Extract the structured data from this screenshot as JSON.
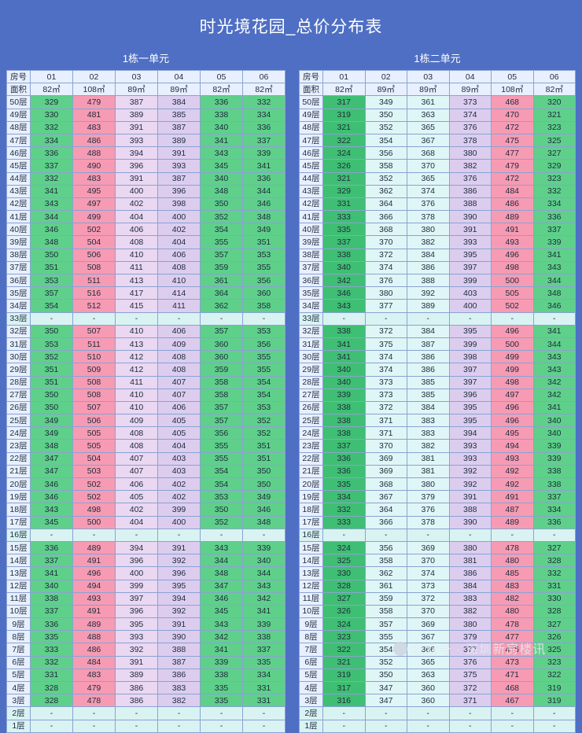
{
  "title": "时光境花园_总价分布表",
  "sections": [
    {
      "id": "left",
      "subtitle": "1栋一单元",
      "head_room": "房号",
      "head_area": "面积",
      "units": [
        "01",
        "02",
        "03",
        "04",
        "05",
        "06"
      ],
      "areas": [
        "82㎡",
        "108㎡",
        "89㎡",
        "89㎡",
        "82㎡",
        "82㎡"
      ],
      "rows": [
        {
          "floor": "50层",
          "v": [
            "329",
            "479",
            "387",
            "384",
            "336",
            "332"
          ]
        },
        {
          "floor": "49层",
          "v": [
            "330",
            "481",
            "389",
            "385",
            "338",
            "334"
          ]
        },
        {
          "floor": "48层",
          "v": [
            "332",
            "483",
            "391",
            "387",
            "340",
            "336"
          ]
        },
        {
          "floor": "47层",
          "v": [
            "334",
            "486",
            "393",
            "389",
            "341",
            "337"
          ]
        },
        {
          "floor": "46层",
          "v": [
            "336",
            "488",
            "394",
            "391",
            "343",
            "339"
          ]
        },
        {
          "floor": "45层",
          "v": [
            "337",
            "490",
            "396",
            "393",
            "345",
            "341"
          ]
        },
        {
          "floor": "44层",
          "v": [
            "332",
            "483",
            "391",
            "387",
            "340",
            "336"
          ]
        },
        {
          "floor": "43层",
          "v": [
            "341",
            "495",
            "400",
            "396",
            "348",
            "344"
          ]
        },
        {
          "floor": "42层",
          "v": [
            "343",
            "497",
            "402",
            "398",
            "350",
            "346"
          ]
        },
        {
          "floor": "41层",
          "v": [
            "344",
            "499",
            "404",
            "400",
            "352",
            "348"
          ]
        },
        {
          "floor": "40层",
          "v": [
            "346",
            "502",
            "406",
            "402",
            "354",
            "349"
          ]
        },
        {
          "floor": "39层",
          "v": [
            "348",
            "504",
            "408",
            "404",
            "355",
            "351"
          ]
        },
        {
          "floor": "38层",
          "v": [
            "350",
            "506",
            "410",
            "406",
            "357",
            "353"
          ]
        },
        {
          "floor": "37层",
          "v": [
            "351",
            "508",
            "411",
            "408",
            "359",
            "355"
          ]
        },
        {
          "floor": "36层",
          "v": [
            "353",
            "511",
            "413",
            "410",
            "361",
            "356"
          ]
        },
        {
          "floor": "35层",
          "v": [
            "357",
            "516",
            "417",
            "414",
            "364",
            "360"
          ]
        },
        {
          "floor": "34层",
          "v": [
            "354",
            "512",
            "415",
            "411",
            "362",
            "358"
          ]
        },
        {
          "floor": "33层",
          "v": [
            "-",
            "-",
            "-",
            "-",
            "-",
            "-"
          ]
        },
        {
          "floor": "32层",
          "v": [
            "350",
            "507",
            "410",
            "406",
            "357",
            "353"
          ]
        },
        {
          "floor": "31层",
          "v": [
            "353",
            "511",
            "413",
            "409",
            "360",
            "356"
          ]
        },
        {
          "floor": "30层",
          "v": [
            "352",
            "510",
            "412",
            "408",
            "360",
            "355"
          ]
        },
        {
          "floor": "29层",
          "v": [
            "351",
            "509",
            "412",
            "408",
            "359",
            "355"
          ]
        },
        {
          "floor": "28层",
          "v": [
            "351",
            "508",
            "411",
            "407",
            "358",
            "354"
          ]
        },
        {
          "floor": "27层",
          "v": [
            "350",
            "508",
            "410",
            "407",
            "358",
            "354"
          ]
        },
        {
          "floor": "26层",
          "v": [
            "350",
            "507",
            "410",
            "406",
            "357",
            "353"
          ]
        },
        {
          "floor": "25层",
          "v": [
            "349",
            "506",
            "409",
            "405",
            "357",
            "352"
          ]
        },
        {
          "floor": "24层",
          "v": [
            "349",
            "505",
            "408",
            "405",
            "356",
            "352"
          ]
        },
        {
          "floor": "23层",
          "v": [
            "348",
            "505",
            "408",
            "404",
            "355",
            "351"
          ]
        },
        {
          "floor": "22层",
          "v": [
            "347",
            "504",
            "407",
            "403",
            "355",
            "351"
          ]
        },
        {
          "floor": "21层",
          "v": [
            "347",
            "503",
            "407",
            "403",
            "354",
            "350"
          ]
        },
        {
          "floor": "20层",
          "v": [
            "346",
            "502",
            "406",
            "402",
            "354",
            "350"
          ]
        },
        {
          "floor": "19层",
          "v": [
            "346",
            "502",
            "405",
            "402",
            "353",
            "349"
          ]
        },
        {
          "floor": "18层",
          "v": [
            "343",
            "498",
            "402",
            "399",
            "350",
            "346"
          ]
        },
        {
          "floor": "17层",
          "v": [
            "345",
            "500",
            "404",
            "400",
            "352",
            "348"
          ]
        },
        {
          "floor": "16层",
          "v": [
            "-",
            "-",
            "-",
            "-",
            "-",
            "-"
          ]
        },
        {
          "floor": "15层",
          "v": [
            "336",
            "489",
            "394",
            "391",
            "343",
            "339"
          ]
        },
        {
          "floor": "14层",
          "v": [
            "337",
            "491",
            "396",
            "392",
            "344",
            "340"
          ]
        },
        {
          "floor": "13层",
          "v": [
            "341",
            "496",
            "400",
            "396",
            "348",
            "344"
          ]
        },
        {
          "floor": "12层",
          "v": [
            "340",
            "494",
            "399",
            "395",
            "347",
            "343"
          ]
        },
        {
          "floor": "11层",
          "v": [
            "338",
            "493",
            "397",
            "394",
            "346",
            "342"
          ]
        },
        {
          "floor": "10层",
          "v": [
            "337",
            "491",
            "396",
            "392",
            "345",
            "341"
          ]
        },
        {
          "floor": "9层",
          "v": [
            "336",
            "489",
            "395",
            "391",
            "343",
            "339"
          ]
        },
        {
          "floor": "8层",
          "v": [
            "335",
            "488",
            "393",
            "390",
            "342",
            "338"
          ]
        },
        {
          "floor": "7层",
          "v": [
            "333",
            "486",
            "392",
            "388",
            "341",
            "337"
          ]
        },
        {
          "floor": "6层",
          "v": [
            "332",
            "484",
            "391",
            "387",
            "339",
            "335"
          ]
        },
        {
          "floor": "5层",
          "v": [
            "331",
            "483",
            "389",
            "386",
            "338",
            "334"
          ]
        },
        {
          "floor": "4层",
          "v": [
            "328",
            "479",
            "386",
            "383",
            "335",
            "331"
          ]
        },
        {
          "floor": "3层",
          "v": [
            "328",
            "478",
            "386",
            "382",
            "335",
            "331"
          ]
        },
        {
          "floor": "2层",
          "v": [
            "-",
            "-",
            "-",
            "-",
            "-",
            "-"
          ]
        },
        {
          "floor": "1层",
          "v": [
            "-",
            "-",
            "-",
            "-",
            "-",
            "-"
          ]
        }
      ]
    },
    {
      "id": "right",
      "subtitle": "1栋二单元",
      "head_room": "房号",
      "head_area": "面积",
      "units": [
        "01",
        "02",
        "03",
        "04",
        "05",
        "06"
      ],
      "areas": [
        "82㎡",
        "89㎡",
        "89㎡",
        "89㎡",
        "108㎡",
        "82㎡"
      ],
      "rows": [
        {
          "floor": "50层",
          "v": [
            "317",
            "349",
            "361",
            "373",
            "468",
            "320"
          ]
        },
        {
          "floor": "49层",
          "v": [
            "319",
            "350",
            "363",
            "374",
            "470",
            "321"
          ]
        },
        {
          "floor": "48层",
          "v": [
            "321",
            "352",
            "365",
            "376",
            "472",
            "323"
          ]
        },
        {
          "floor": "47层",
          "v": [
            "322",
            "354",
            "367",
            "378",
            "475",
            "325"
          ]
        },
        {
          "floor": "46层",
          "v": [
            "324",
            "356",
            "368",
            "380",
            "477",
            "327"
          ]
        },
        {
          "floor": "45层",
          "v": [
            "326",
            "358",
            "370",
            "382",
            "479",
            "329"
          ]
        },
        {
          "floor": "44层",
          "v": [
            "321",
            "352",
            "365",
            "376",
            "472",
            "323"
          ]
        },
        {
          "floor": "43层",
          "v": [
            "329",
            "362",
            "374",
            "386",
            "484",
            "332"
          ]
        },
        {
          "floor": "42层",
          "v": [
            "331",
            "364",
            "376",
            "388",
            "486",
            "334"
          ]
        },
        {
          "floor": "41层",
          "v": [
            "333",
            "366",
            "378",
            "390",
            "489",
            "336"
          ]
        },
        {
          "floor": "40层",
          "v": [
            "335",
            "368",
            "380",
            "391",
            "491",
            "337"
          ]
        },
        {
          "floor": "39层",
          "v": [
            "337",
            "370",
            "382",
            "393",
            "493",
            "339"
          ]
        },
        {
          "floor": "38层",
          "v": [
            "338",
            "372",
            "384",
            "395",
            "496",
            "341"
          ]
        },
        {
          "floor": "37层",
          "v": [
            "340",
            "374",
            "386",
            "397",
            "498",
            "343"
          ]
        },
        {
          "floor": "36层",
          "v": [
            "342",
            "376",
            "388",
            "399",
            "500",
            "344"
          ]
        },
        {
          "floor": "35层",
          "v": [
            "346",
            "380",
            "392",
            "403",
            "505",
            "348"
          ]
        },
        {
          "floor": "34层",
          "v": [
            "343",
            "377",
            "389",
            "400",
            "502",
            "346"
          ]
        },
        {
          "floor": "33层",
          "v": [
            "-",
            "-",
            "-",
            "-",
            "-",
            "-"
          ]
        },
        {
          "floor": "32层",
          "v": [
            "338",
            "372",
            "384",
            "395",
            "496",
            "341"
          ]
        },
        {
          "floor": "31层",
          "v": [
            "341",
            "375",
            "387",
            "399",
            "500",
            "344"
          ]
        },
        {
          "floor": "30层",
          "v": [
            "341",
            "374",
            "386",
            "398",
            "499",
            "343"
          ]
        },
        {
          "floor": "29层",
          "v": [
            "340",
            "374",
            "386",
            "397",
            "499",
            "343"
          ]
        },
        {
          "floor": "28层",
          "v": [
            "340",
            "373",
            "385",
            "397",
            "498",
            "342"
          ]
        },
        {
          "floor": "27层",
          "v": [
            "339",
            "373",
            "385",
            "396",
            "497",
            "342"
          ]
        },
        {
          "floor": "26层",
          "v": [
            "338",
            "372",
            "384",
            "395",
            "496",
            "341"
          ]
        },
        {
          "floor": "25层",
          "v": [
            "338",
            "371",
            "383",
            "395",
            "496",
            "340"
          ]
        },
        {
          "floor": "24层",
          "v": [
            "338",
            "371",
            "383",
            "394",
            "495",
            "340"
          ]
        },
        {
          "floor": "23层",
          "v": [
            "337",
            "370",
            "382",
            "393",
            "494",
            "339"
          ]
        },
        {
          "floor": "22层",
          "v": [
            "336",
            "369",
            "381",
            "393",
            "493",
            "339"
          ]
        },
        {
          "floor": "21层",
          "v": [
            "336",
            "369",
            "381",
            "392",
            "492",
            "338"
          ]
        },
        {
          "floor": "20层",
          "v": [
            "335",
            "368",
            "380",
            "392",
            "492",
            "338"
          ]
        },
        {
          "floor": "19层",
          "v": [
            "334",
            "367",
            "379",
            "391",
            "491",
            "337"
          ]
        },
        {
          "floor": "18层",
          "v": [
            "332",
            "364",
            "376",
            "388",
            "487",
            "334"
          ]
        },
        {
          "floor": "17层",
          "v": [
            "333",
            "366",
            "378",
            "390",
            "489",
            "336"
          ]
        },
        {
          "floor": "16层",
          "v": [
            "-",
            "-",
            "-",
            "-",
            "-",
            "-"
          ]
        },
        {
          "floor": "15层",
          "v": [
            "324",
            "356",
            "369",
            "380",
            "478",
            "327"
          ]
        },
        {
          "floor": "14层",
          "v": [
            "325",
            "358",
            "370",
            "381",
            "480",
            "328"
          ]
        },
        {
          "floor": "13层",
          "v": [
            "330",
            "362",
            "374",
            "386",
            "485",
            "332"
          ]
        },
        {
          "floor": "12层",
          "v": [
            "328",
            "361",
            "373",
            "384",
            "483",
            "331"
          ]
        },
        {
          "floor": "11层",
          "v": [
            "327",
            "359",
            "372",
            "383",
            "482",
            "330"
          ]
        },
        {
          "floor": "10层",
          "v": [
            "326",
            "358",
            "370",
            "382",
            "480",
            "328"
          ]
        },
        {
          "floor": "9层",
          "v": [
            "324",
            "357",
            "369",
            "380",
            "478",
            "327"
          ]
        },
        {
          "floor": "8层",
          "v": [
            "323",
            "355",
            "367",
            "379",
            "477",
            "326"
          ]
        },
        {
          "floor": "7层",
          "v": [
            "322",
            "354",
            "366",
            "377",
            "475",
            "325"
          ]
        },
        {
          "floor": "6层",
          "v": [
            "321",
            "352",
            "365",
            "376",
            "473",
            "323"
          ]
        },
        {
          "floor": "5层",
          "v": [
            "319",
            "350",
            "363",
            "375",
            "471",
            "322"
          ]
        },
        {
          "floor": "4层",
          "v": [
            "317",
            "347",
            "360",
            "372",
            "468",
            "319"
          ]
        },
        {
          "floor": "3层",
          "v": [
            "316",
            "347",
            "360",
            "371",
            "467",
            "319"
          ]
        },
        {
          "floor": "2层",
          "v": [
            "-",
            "-",
            "-",
            "-",
            "-",
            "-"
          ]
        },
        {
          "floor": "1层",
          "v": [
            "-",
            "-",
            "-",
            "-",
            "-",
            "-"
          ]
        }
      ]
    }
  ],
  "watermark": "公众号 · 深圳新房楼讯",
  "watermark_icon": "wechat-icon",
  "colors": {
    "background": "#4f6fc4",
    "low_price_green": "#5ed08a",
    "high_price_pink": "#f69bb3",
    "mid_price_lavender": "#ead7f1",
    "header_bg": "#e8f0ff"
  }
}
